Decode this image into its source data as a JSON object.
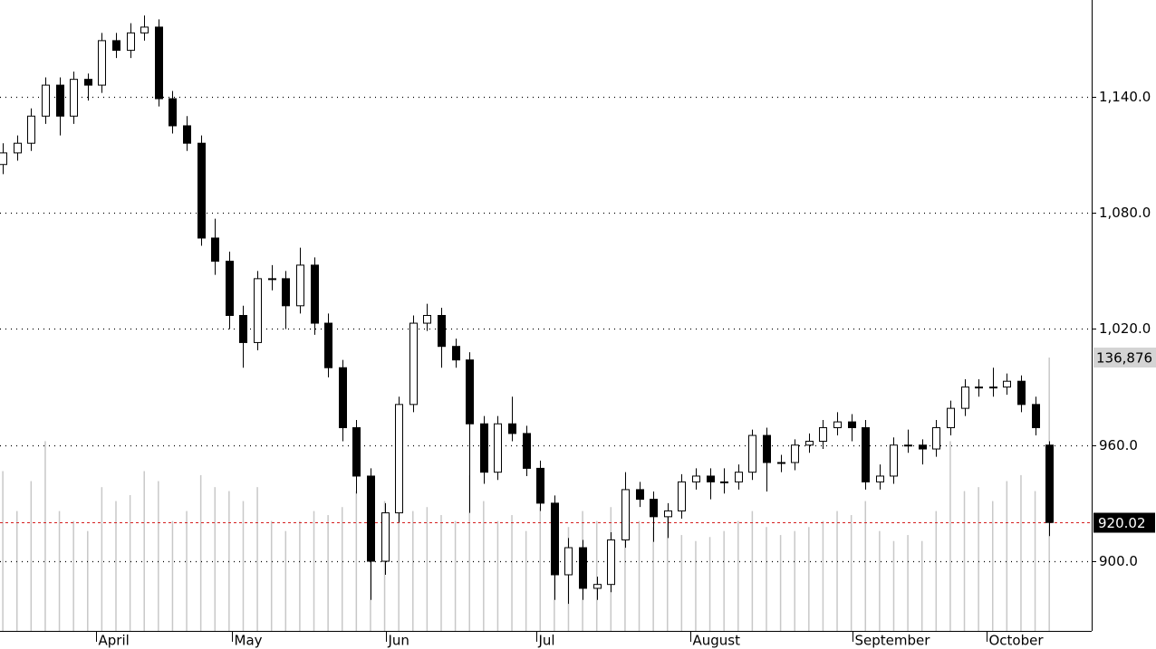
{
  "chart_data": {
    "type": "candlestick",
    "ohlc": [
      [
        1105,
        1116,
        1100,
        1111
      ],
      [
        1111,
        1120,
        1107,
        1116
      ],
      [
        1116,
        1134,
        1112,
        1130
      ],
      [
        1130,
        1150,
        1126,
        1146
      ],
      [
        1146,
        1150,
        1120,
        1130
      ],
      [
        1130,
        1153,
        1126,
        1149
      ],
      [
        1149,
        1152,
        1138,
        1146
      ],
      [
        1146,
        1173,
        1142,
        1169
      ],
      [
        1169,
        1173,
        1160,
        1164
      ],
      [
        1164,
        1178,
        1160,
        1173
      ],
      [
        1173,
        1182,
        1169,
        1176
      ],
      [
        1176,
        1180,
        1135,
        1139
      ],
      [
        1139,
        1143,
        1121,
        1125
      ],
      [
        1125,
        1130,
        1112,
        1116
      ],
      [
        1116,
        1120,
        1063,
        1067
      ],
      [
        1067,
        1077,
        1048,
        1055
      ],
      [
        1055,
        1060,
        1020,
        1027
      ],
      [
        1027,
        1032,
        1000,
        1013
      ],
      [
        1013,
        1050,
        1009,
        1046
      ],
      [
        1046,
        1053,
        1040,
        1046
      ],
      [
        1046,
        1050,
        1020,
        1032
      ],
      [
        1032,
        1062,
        1028,
        1053
      ],
      [
        1053,
        1057,
        1017,
        1023
      ],
      [
        1023,
        1028,
        995,
        1000
      ],
      [
        1000,
        1004,
        962,
        969
      ],
      [
        969,
        973,
        935,
        944
      ],
      [
        944,
        948,
        880,
        900
      ],
      [
        900,
        930,
        893,
        925
      ],
      [
        925,
        985,
        920,
        981
      ],
      [
        981,
        1027,
        977,
        1023
      ],
      [
        1023,
        1033,
        1019,
        1027
      ],
      [
        1027,
        1031,
        1000,
        1011
      ],
      [
        1011,
        1015,
        1000,
        1004
      ],
      [
        1004,
        1008,
        925,
        971
      ],
      [
        971,
        975,
        940,
        946
      ],
      [
        946,
        975,
        942,
        971
      ],
      [
        971,
        985,
        962,
        966
      ],
      [
        966,
        970,
        944,
        948
      ],
      [
        948,
        952,
        926,
        930
      ],
      [
        930,
        934,
        880,
        893
      ],
      [
        893,
        912,
        878,
        907
      ],
      [
        907,
        911,
        880,
        886
      ],
      [
        886,
        892,
        880,
        888
      ],
      [
        888,
        915,
        884,
        911
      ],
      [
        911,
        946,
        907,
        937
      ],
      [
        937,
        941,
        928,
        932
      ],
      [
        932,
        936,
        910,
        923
      ],
      [
        923,
        930,
        912,
        926
      ],
      [
        926,
        945,
        922,
        941
      ],
      [
        941,
        948,
        937,
        944
      ],
      [
        944,
        948,
        932,
        941
      ],
      [
        941,
        948,
        935,
        941
      ],
      [
        941,
        950,
        937,
        946
      ],
      [
        946,
        968,
        942,
        965
      ],
      [
        965,
        969,
        936,
        951
      ],
      [
        951,
        955,
        946,
        951
      ],
      [
        951,
        963,
        947,
        960
      ],
      [
        960,
        966,
        956,
        962
      ],
      [
        962,
        973,
        958,
        969
      ],
      [
        969,
        977,
        965,
        972
      ],
      [
        972,
        976,
        962,
        969
      ],
      [
        969,
        973,
        937,
        941
      ],
      [
        941,
        950,
        937,
        944
      ],
      [
        944,
        964,
        940,
        960
      ],
      [
        960,
        968,
        956,
        960
      ],
      [
        960,
        963,
        950,
        958
      ],
      [
        958,
        973,
        954,
        969
      ],
      [
        969,
        983,
        965,
        979
      ],
      [
        979,
        994,
        975,
        990
      ],
      [
        990,
        994,
        985,
        990
      ],
      [
        990,
        1000,
        985,
        990
      ],
      [
        990,
        997,
        986,
        993
      ],
      [
        993,
        996,
        977,
        981
      ],
      [
        981,
        985,
        965,
        969
      ],
      [
        960,
        962,
        913,
        920.02
      ]
    ],
    "volume": [
      80000,
      60000,
      75000,
      95000,
      60000,
      55000,
      50000,
      72000,
      65000,
      68000,
      80000,
      75000,
      55000,
      60000,
      78000,
      72000,
      70000,
      65000,
      72000,
      55000,
      50000,
      55000,
      60000,
      58000,
      62000,
      70000,
      75000,
      65000,
      80000,
      60000,
      62000,
      58000,
      55000,
      78000,
      65000,
      55000,
      58000,
      50000,
      62000,
      58000,
      52000,
      60000,
      55000,
      62000,
      65000,
      55000,
      52000,
      58000,
      48000,
      45000,
      47000,
      50000,
      55000,
      60000,
      52000,
      48000,
      50000,
      52000,
      55000,
      60000,
      58000,
      65000,
      50000,
      45000,
      48000,
      45000,
      60000,
      95000,
      70000,
      72000,
      65000,
      75000,
      78000,
      70000,
      136876
    ],
    "last_volume_label": "136,876",
    "xlim": [
      -0.2,
      77
    ],
    "xticks": [
      {
        "value": 6.6,
        "label": "April"
      },
      {
        "value": 16.2,
        "label": "May"
      },
      {
        "value": 27.1,
        "label": "Jun"
      },
      {
        "value": 37.7,
        "label": "Jul"
      },
      {
        "value": 48.6,
        "label": "August"
      },
      {
        "value": 60.1,
        "label": "September"
      },
      {
        "value": 69.6,
        "label": "October"
      }
    ],
    "ylim": [
      864,
      1190
    ],
    "yticks": [
      {
        "value": 900,
        "label": "900.0"
      },
      {
        "value": 960,
        "label": "960.0"
      },
      {
        "value": 1020,
        "label": "1,020.0"
      },
      {
        "value": 1080,
        "label": "1,080.0"
      },
      {
        "value": 1140,
        "label": "1,140.0"
      }
    ],
    "volume_lim": [
      0,
      315900
    ],
    "grid": true,
    "up_color": "#ffffff",
    "down_color": "#000000",
    "volume_color": "#c8c8c8",
    "last_line_color": "#d42020"
  }
}
